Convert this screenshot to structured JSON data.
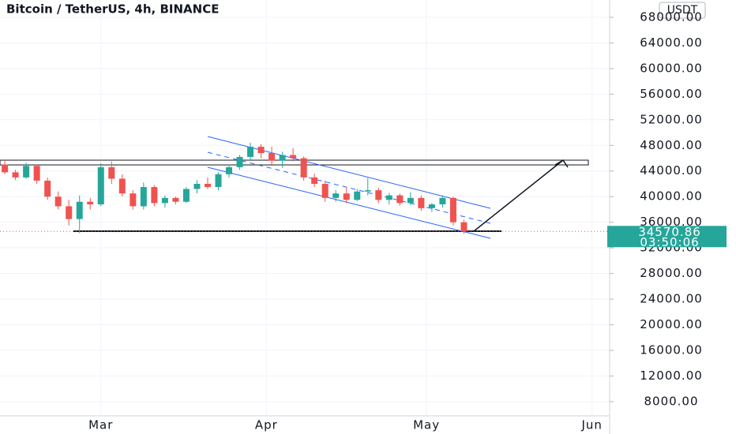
{
  "chart_data": {
    "type": "candlestick",
    "title": "Bitcoin / TetherUS, 4h, BINANCE",
    "currency": "USDT",
    "x": [
      -18,
      -16,
      -14,
      -12,
      -10,
      -8,
      -6,
      -4,
      -2,
      0,
      2,
      4,
      6,
      8,
      10,
      12,
      14,
      16,
      18,
      20,
      22,
      24,
      26,
      28,
      30,
      32,
      34,
      36,
      38,
      40,
      42,
      44,
      46,
      48,
      50,
      52,
      54,
      56,
      58,
      60,
      62,
      64,
      66,
      68
    ],
    "open": [
      45000,
      43800,
      43000,
      44800,
      42500,
      40000,
      38500,
      36500,
      39200,
      38800,
      44600,
      42800,
      40500,
      38500,
      41500,
      39000,
      39800,
      39200,
      41200,
      42000,
      41500,
      43500,
      44600,
      46200,
      47800,
      46800,
      45600,
      46500,
      46000,
      43000,
      42000,
      39800,
      40500,
      39500,
      40800,
      41000,
      39500,
      40200,
      39000,
      39800,
      38200,
      38800,
      39800,
      36000
    ],
    "high": [
      45800,
      44200,
      45300,
      45000,
      43000,
      40800,
      39500,
      40200,
      39800,
      45200,
      45500,
      43500,
      41000,
      42200,
      41800,
      40200,
      40000,
      41500,
      42600,
      43000,
      43800,
      45000,
      46500,
      48400,
      48200,
      47800,
      47000,
      47600,
      46300,
      43600,
      42500,
      41000,
      41500,
      41200,
      42900,
      41400,
      40600,
      40500,
      40700,
      40200,
      39000,
      40200,
      40000,
      36400
    ],
    "low": [
      43500,
      42600,
      42800,
      42000,
      39500,
      38000,
      35500,
      34300,
      38000,
      38500,
      42000,
      40000,
      38000,
      38000,
      38500,
      38300,
      38800,
      39000,
      40500,
      41200,
      41000,
      43000,
      44200,
      45800,
      46000,
      44800,
      44500,
      45500,
      42500,
      41500,
      39200,
      39200,
      39000,
      39300,
      40200,
      39000,
      38800,
      38600,
      38700,
      37800,
      37600,
      38300,
      35500,
      34200
    ],
    "close": [
      43800,
      43000,
      44800,
      42500,
      40000,
      38500,
      36500,
      39200,
      38800,
      44600,
      42800,
      40500,
      38500,
      41500,
      39000,
      39800,
      39200,
      41200,
      42000,
      41500,
      43500,
      44600,
      46200,
      47800,
      46800,
      45600,
      46500,
      46000,
      43000,
      42000,
      39800,
      40500,
      39500,
      40800,
      41000,
      39500,
      40200,
      39000,
      39800,
      38200,
      38800,
      39800,
      36000,
      34570.86
    ],
    "up_color": "#26a69a",
    "down_color": "#ef5350",
    "last_price": 34570.86,
    "countdown": "03:50:06",
    "xlim": [
      -18.9,
      95.3
    ],
    "xticks": [
      {
        "value": 0,
        "label": "Mar"
      },
      {
        "value": 31,
        "label": "Apr"
      },
      {
        "value": 61,
        "label": "May"
      },
      {
        "value": 92,
        "label": "Jun"
      }
    ],
    "ylim": [
      5780,
      70700
    ],
    "yticks": [
      {
        "value": 8000,
        "label": "8000.00"
      },
      {
        "value": 12000,
        "label": "12000.00"
      },
      {
        "value": 16000,
        "label": "16000.00"
      },
      {
        "value": 20000,
        "label": "20000.00"
      },
      {
        "value": 24000,
        "label": "24000.00"
      },
      {
        "value": 28000,
        "label": "28000.00"
      },
      {
        "value": 32000,
        "label": "32000.00"
      },
      {
        "value": 36000,
        "label": "36000.00"
      },
      {
        "value": 40000,
        "label": "40000.00"
      },
      {
        "value": 44000,
        "label": "44000.00"
      },
      {
        "value": 48000,
        "label": "48000.00"
      },
      {
        "value": 52000,
        "label": "52000.00"
      },
      {
        "value": 56000,
        "label": "56000.00"
      },
      {
        "value": 60000,
        "label": "60000.00"
      },
      {
        "value": 64000,
        "label": "64000.00"
      },
      {
        "value": 68000,
        "label": "68000.00"
      }
    ],
    "grid": true
  }
}
